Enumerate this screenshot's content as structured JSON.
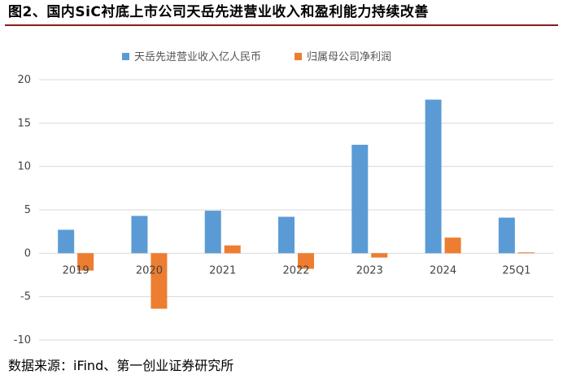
{
  "figure_title": "图2、国内SiC衬底上市公司天岳先进营业收入和盈利能力持续改善",
  "source_note": "数据来源：iFind、第一创业证券研究所",
  "colors": {
    "revenue": "#5b9bd5",
    "profit": "#ed7d31",
    "grid": "#d9d9d9",
    "axis_text": "#444444",
    "title_rule": "#8a1c1c"
  },
  "chart_data": {
    "type": "bar",
    "categories": [
      "2019",
      "2020",
      "2021",
      "2022",
      "2023",
      "2024",
      "25Q1"
    ],
    "series": [
      {
        "name": "天岳先进营业收入亿人民币",
        "color": "#5b9bd5",
        "values": [
          2.7,
          4.3,
          4.9,
          4.2,
          12.5,
          17.7,
          4.1
        ]
      },
      {
        "name": "归属母公司净利润",
        "color": "#ed7d31",
        "values": [
          -2.0,
          -6.4,
          0.9,
          -1.8,
          -0.5,
          1.8,
          0.1
        ]
      }
    ],
    "ylim": [
      -10,
      20
    ],
    "yticks": [
      -10,
      -5,
      0,
      5,
      10,
      15,
      20
    ],
    "ytick_labels": [
      "-10",
      "-5",
      "0",
      "5",
      "10",
      "15",
      "20"
    ],
    "xlabel": "",
    "ylabel": "",
    "grid": true,
    "legend_position": "top-center"
  }
}
